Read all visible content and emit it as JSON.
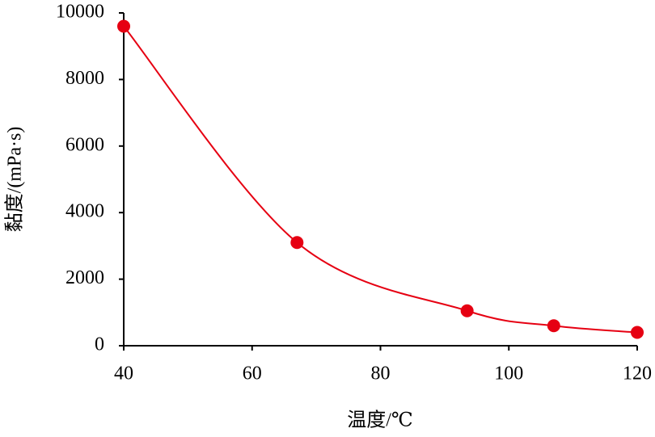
{
  "chart_data": {
    "type": "line",
    "xlabel": "温度/℃",
    "ylabel": "黏度/(mPa·s)",
    "x": [
      40,
      67,
      93.5,
      107,
      120
    ],
    "series": [
      {
        "color": "#e60012",
        "values": [
          9600,
          3100,
          1050,
          600,
          400
        ]
      }
    ],
    "smooth": true,
    "markers": true,
    "xlim": [
      40,
      120
    ],
    "xticks": [
      40,
      60,
      80,
      100,
      120
    ],
    "ylim": [
      0,
      10000
    ],
    "yticks": [
      0,
      2000,
      4000,
      6000,
      8000,
      10000
    ],
    "grid": false
  }
}
